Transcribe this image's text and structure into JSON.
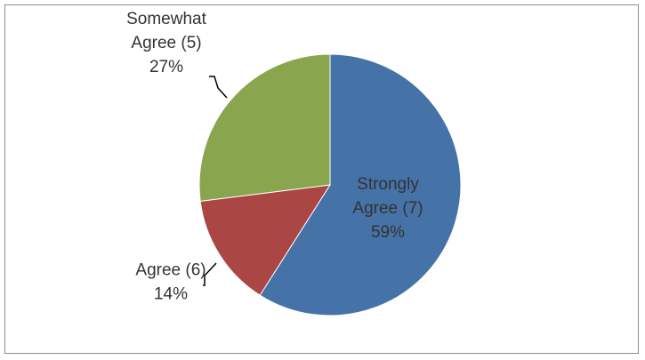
{
  "chart_data": {
    "type": "pie",
    "title": "",
    "start_angle_deg": 0,
    "direction": "clockwise",
    "slices": [
      {
        "category": "Strongly Agree (7)",
        "label_lines": [
          "Strongly",
          "Agree (7)"
        ],
        "value": 59,
        "pct_label": "59%",
        "color": "#4572A7"
      },
      {
        "category": "Agree (6)",
        "label_lines": [
          "Agree (6)"
        ],
        "value": 14,
        "pct_label": "14%",
        "color": "#AA4643"
      },
      {
        "category": "Somewhat Agree (5)",
        "label_lines": [
          "Somewhat",
          "Agree (5)"
        ],
        "value": 27,
        "pct_label": "27%",
        "color": "#89A54E"
      }
    ],
    "legend": "none"
  }
}
